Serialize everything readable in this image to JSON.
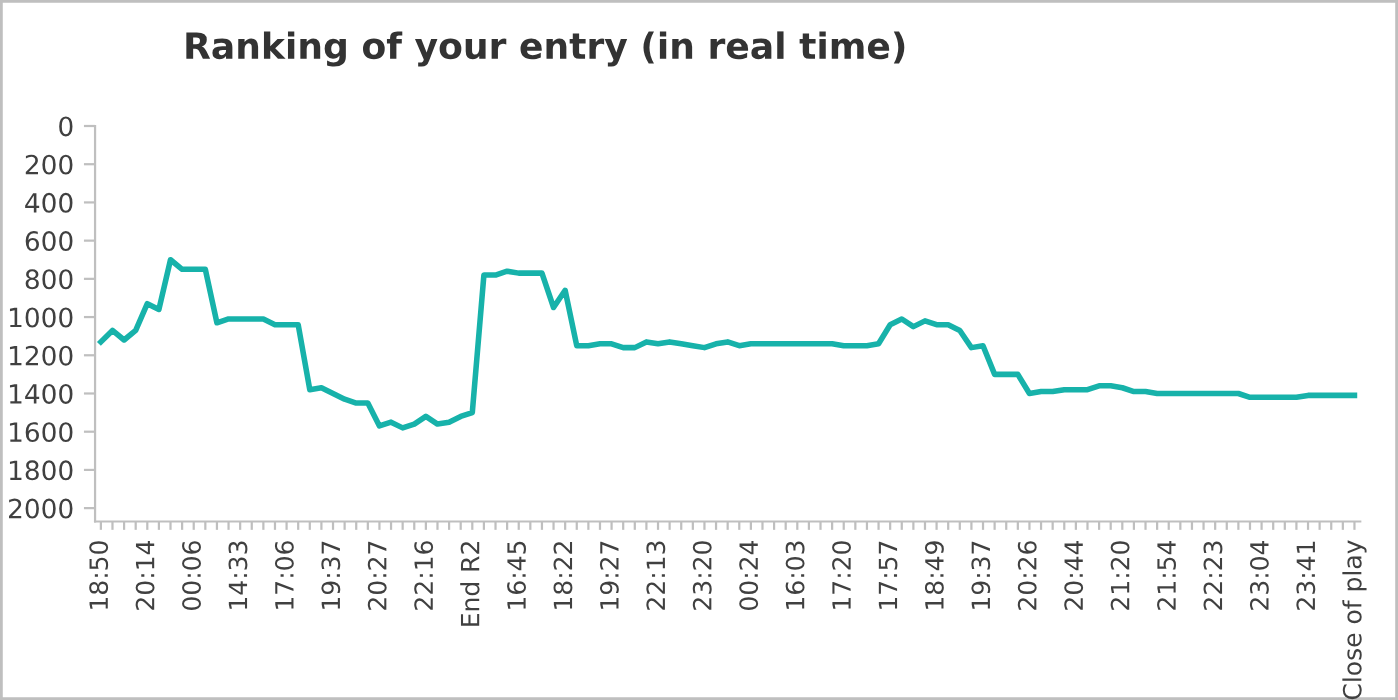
{
  "chart_data": {
    "type": "line",
    "title": "Ranking of your entry (in real time)",
    "categories": [
      "18:50",
      null,
      null,
      null,
      "20:14",
      null,
      null,
      null,
      "00:06",
      null,
      null,
      null,
      "14:33",
      null,
      null,
      null,
      "17:06",
      null,
      null,
      null,
      "19:37",
      null,
      null,
      null,
      "20:27",
      null,
      null,
      null,
      "22:16",
      null,
      null,
      null,
      "End R2",
      null,
      null,
      null,
      "16:45",
      null,
      null,
      null,
      "18:22",
      null,
      null,
      null,
      "19:27",
      null,
      null,
      null,
      "22:13",
      null,
      null,
      null,
      "23:20",
      null,
      null,
      null,
      "00:24",
      null,
      null,
      null,
      "16:03",
      null,
      null,
      null,
      "17:20",
      null,
      null,
      null,
      "17:57",
      null,
      null,
      null,
      "18:49",
      null,
      null,
      null,
      "19:37",
      null,
      null,
      null,
      "20:26",
      null,
      null,
      null,
      "20:44",
      null,
      null,
      null,
      "21:20",
      null,
      null,
      null,
      "21:54",
      null,
      null,
      null,
      "22:23",
      null,
      null,
      null,
      "23:04",
      null,
      null,
      null,
      "23:41",
      null,
      null,
      null,
      "Close of play"
    ],
    "series": [
      {
        "color": "#17b2aa",
        "values": [
          1130,
          1070,
          1120,
          1070,
          930,
          960,
          700,
          750,
          750,
          750,
          1030,
          1010,
          1010,
          1010,
          1010,
          1040,
          1040,
          1040,
          1380,
          1370,
          1400,
          1430,
          1450,
          1450,
          1570,
          1550,
          1580,
          1560,
          1520,
          1560,
          1550,
          1520,
          1500,
          780,
          780,
          760,
          770,
          770,
          770,
          950,
          860,
          1150,
          1150,
          1140,
          1140,
          1160,
          1160,
          1130,
          1140,
          1130,
          1140,
          1150,
          1160,
          1140,
          1130,
          1150,
          1140,
          1140,
          1140,
          1140,
          1140,
          1140,
          1140,
          1140,
          1150,
          1150,
          1150,
          1140,
          1040,
          1010,
          1050,
          1020,
          1040,
          1040,
          1070,
          1160,
          1150,
          1300,
          1300,
          1300,
          1400,
          1390,
          1390,
          1380,
          1380,
          1380,
          1360,
          1360,
          1370,
          1390,
          1390,
          1400,
          1400,
          1400,
          1400,
          1400,
          1400,
          1400,
          1400,
          1420,
          1420,
          1420,
          1420,
          1420,
          1410,
          1410,
          1410,
          1410,
          1410
        ]
      }
    ],
    "ylim": [
      2070,
      0
    ],
    "yticks": [
      0,
      200,
      400,
      600,
      800,
      1000,
      1200,
      1400,
      1600,
      1800,
      2000
    ],
    "grid": false,
    "marker": "none",
    "line_style": "solid"
  }
}
